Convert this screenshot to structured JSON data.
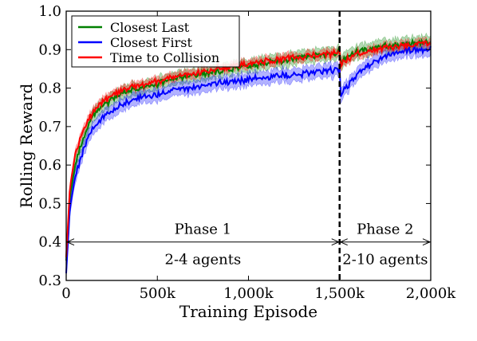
{
  "chart_data": {
    "type": "line",
    "title": "",
    "xlabel": "Training Episode",
    "ylabel": "Rolling Reward",
    "xlim": [
      0,
      2000000
    ],
    "ylim": [
      0.3,
      1.0
    ],
    "x_ticks": [
      0,
      500000,
      1000000,
      1500000,
      2000000
    ],
    "x_tick_labels": [
      "0",
      "500k",
      "1,000k",
      "1,500k",
      "2,000k"
    ],
    "y_ticks": [
      0.3,
      0.4,
      0.5,
      0.6,
      0.7,
      0.8,
      0.9,
      1.0
    ],
    "y_tick_labels": [
      "0.3",
      "0.4",
      "0.5",
      "0.6",
      "0.7",
      "0.8",
      "0.9",
      "1.0"
    ],
    "grid": false,
    "legend_position": "top-left",
    "series": [
      {
        "name": "Closest Last",
        "color": "#008000",
        "x": [
          0,
          20000,
          50000,
          100000,
          150000,
          200000,
          300000,
          400000,
          500000,
          600000,
          700000,
          800000,
          900000,
          1000000,
          1100000,
          1200000,
          1300000,
          1400000,
          1500000,
          1505000,
          1520000,
          1600000,
          1700000,
          1800000,
          1900000,
          2000000
        ],
        "values": [
          0.35,
          0.52,
          0.6,
          0.68,
          0.73,
          0.755,
          0.785,
          0.8,
          0.81,
          0.825,
          0.833,
          0.842,
          0.851,
          0.859,
          0.866,
          0.873,
          0.88,
          0.886,
          0.892,
          0.865,
          0.875,
          0.895,
          0.905,
          0.912,
          0.917,
          0.922
        ],
        "band": 0.018
      },
      {
        "name": "Closest First",
        "color": "#0000ff",
        "x": [
          0,
          20000,
          50000,
          100000,
          150000,
          200000,
          300000,
          400000,
          500000,
          600000,
          700000,
          800000,
          900000,
          1000000,
          1100000,
          1200000,
          1300000,
          1400000,
          1500000,
          1505000,
          1520000,
          1600000,
          1700000,
          1800000,
          1900000,
          2000000
        ],
        "values": [
          0.32,
          0.49,
          0.57,
          0.65,
          0.7,
          0.725,
          0.757,
          0.773,
          0.785,
          0.795,
          0.802,
          0.81,
          0.817,
          0.822,
          0.828,
          0.833,
          0.838,
          0.842,
          0.848,
          0.78,
          0.79,
          0.84,
          0.87,
          0.89,
          0.9,
          0.9
        ],
        "band": 0.018
      },
      {
        "name": "Time to Collision",
        "color": "#ff0000",
        "x": [
          0,
          20000,
          50000,
          100000,
          150000,
          200000,
          300000,
          400000,
          500000,
          600000,
          700000,
          800000,
          900000,
          1000000,
          1100000,
          1200000,
          1300000,
          1400000,
          1500000,
          1505000,
          1520000,
          1600000,
          1700000,
          1800000,
          1900000,
          2000000
        ],
        "values": [
          0.36,
          0.54,
          0.63,
          0.7,
          0.74,
          0.765,
          0.792,
          0.807,
          0.818,
          0.83,
          0.838,
          0.846,
          0.855,
          0.862,
          0.869,
          0.875,
          0.882,
          0.887,
          0.892,
          0.855,
          0.87,
          0.89,
          0.9,
          0.908,
          0.913,
          0.918
        ],
        "band": 0.012
      }
    ],
    "phase_boundary_x": 1500000,
    "annotations": [
      {
        "label": "Phase 1",
        "sub_label": "2-4 agents",
        "x_start": 0,
        "x_end": 1500000,
        "y": 0.4
      },
      {
        "label": "Phase 2",
        "sub_label": "2-10 agents",
        "x_start": 1500000,
        "x_end": 2000000,
        "y": 0.4
      }
    ]
  }
}
